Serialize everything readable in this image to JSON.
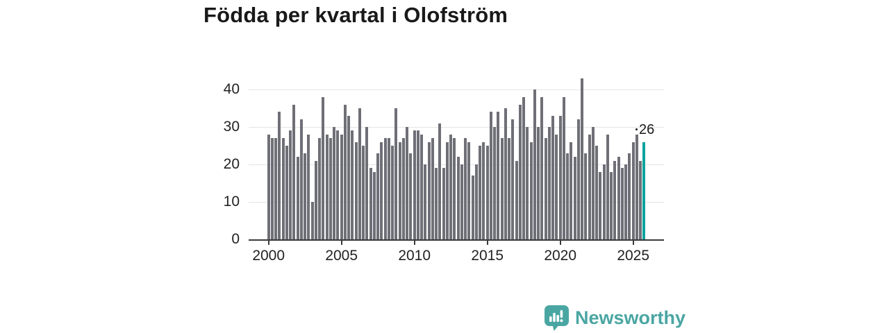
{
  "title": "Födda per kvartal i Olofström",
  "colors": {
    "bar": "#6f6f77",
    "highlight": "#0aa39c",
    "axis": "#3a3a3a",
    "grid": "#e4e4e4",
    "text": "#222222",
    "title_text": "#191919",
    "brand": "#4aa6a2",
    "background": "#ffffff"
  },
  "branding": {
    "name": "Newsworthy",
    "icon": "speech-bubble-bar-chart-icon"
  },
  "chart_data": {
    "type": "bar",
    "title": "Födda per kvartal i Olofström",
    "xlabel": "",
    "ylabel": "",
    "x_unit": "quarter",
    "x_start": "2000-Q1",
    "x_end": "2025-Q4",
    "x_tick_labels": [
      "2000",
      "2005",
      "2010",
      "2015",
      "2020",
      "2025"
    ],
    "y_ticks": [
      0,
      10,
      20,
      30,
      40
    ],
    "ylim": [
      0,
      44
    ],
    "grid": "horizontal",
    "legend": "none",
    "highlight_last_bar": true,
    "last_value_label": "26",
    "values": [
      28,
      27,
      27,
      34,
      27,
      25,
      29,
      36,
      22,
      32,
      23,
      28,
      10,
      21,
      27,
      38,
      28,
      27,
      30,
      29,
      28,
      36,
      33,
      29,
      26,
      35,
      25,
      30,
      19,
      18,
      23,
      26,
      27,
      27,
      25,
      35,
      26,
      27,
      30,
      23,
      29,
      29,
      28,
      20,
      26,
      27,
      19,
      31,
      19,
      26,
      28,
      27,
      22,
      20,
      27,
      26,
      17,
      20,
      25,
      26,
      25,
      34,
      30,
      34,
      27,
      35,
      27,
      32,
      21,
      36,
      38,
      30,
      26,
      40,
      30,
      38,
      27,
      30,
      33,
      28,
      33,
      38,
      23,
      26,
      22,
      32,
      43,
      23,
      28,
      30,
      25,
      18,
      20,
      28,
      18,
      21,
      22,
      19,
      20,
      23,
      26,
      28,
      21,
      26
    ]
  }
}
